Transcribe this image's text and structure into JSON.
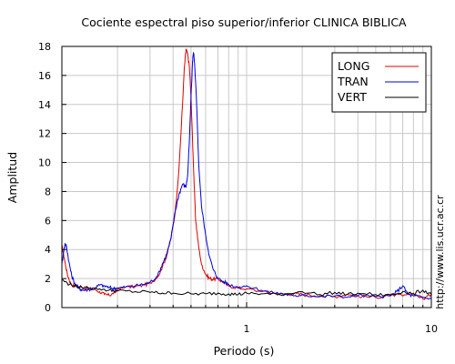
{
  "chart_data": {
    "type": "line",
    "title": "Cociente espectral piso superior/inferior  CLINICA BIBLICA",
    "xlabel": "Periodo (s)",
    "ylabel": "Amplitud",
    "side_text": "http://www.lis.ucr.ac.cr",
    "x_scale": "log",
    "xlim": [
      0.1,
      10
    ],
    "ylim": [
      0,
      18
    ],
    "x_tick_labels": [
      {
        "value": 1,
        "label": "1"
      },
      {
        "value": 10,
        "label": "10"
      }
    ],
    "y_ticks": [
      0,
      2,
      4,
      6,
      8,
      10,
      12,
      14,
      16,
      18
    ],
    "grid": true,
    "legend_position": "top-right",
    "series": [
      {
        "name": "LONG",
        "color": "#dd0000",
        "points": [
          [
            0.1,
            4.3
          ],
          [
            0.103,
            3.4
          ],
          [
            0.107,
            2.3
          ],
          [
            0.112,
            1.6
          ],
          [
            0.12,
            1.45
          ],
          [
            0.13,
            1.35
          ],
          [
            0.14,
            1.3
          ],
          [
            0.15,
            1.25
          ],
          [
            0.16,
            1.1
          ],
          [
            0.17,
            0.9
          ],
          [
            0.18,
            0.85
          ],
          [
            0.19,
            0.95
          ],
          [
            0.2,
            1.2
          ],
          [
            0.22,
            1.4
          ],
          [
            0.25,
            1.45
          ],
          [
            0.28,
            1.55
          ],
          [
            0.3,
            1.7
          ],
          [
            0.33,
            2.1
          ],
          [
            0.35,
            2.8
          ],
          [
            0.37,
            3.6
          ],
          [
            0.39,
            4.8
          ],
          [
            0.41,
            6.5
          ],
          [
            0.43,
            9.5
          ],
          [
            0.45,
            14.0
          ],
          [
            0.46,
            16.5
          ],
          [
            0.47,
            17.8
          ],
          [
            0.48,
            17.4
          ],
          [
            0.49,
            16.6
          ],
          [
            0.5,
            14.5
          ],
          [
            0.51,
            11.5
          ],
          [
            0.52,
            8.5
          ],
          [
            0.53,
            6.0
          ],
          [
            0.55,
            4.2
          ],
          [
            0.57,
            3.0
          ],
          [
            0.6,
            2.3
          ],
          [
            0.63,
            2.0
          ],
          [
            0.66,
            1.95
          ],
          [
            0.7,
            2.0
          ],
          [
            0.75,
            1.7
          ],
          [
            0.8,
            1.5
          ],
          [
            0.9,
            1.35
          ],
          [
            1.0,
            1.3
          ],
          [
            1.2,
            1.1
          ],
          [
            1.4,
            1.0
          ],
          [
            1.6,
            0.9
          ],
          [
            1.8,
            0.95
          ],
          [
            2.0,
            0.9
          ],
          [
            2.5,
            0.8
          ],
          [
            3.0,
            0.75
          ],
          [
            3.5,
            0.9
          ],
          [
            4.0,
            0.8
          ],
          [
            5.0,
            0.7
          ],
          [
            6.0,
            0.9
          ],
          [
            7.0,
            0.8
          ],
          [
            8.0,
            1.0
          ],
          [
            9.0,
            0.6
          ],
          [
            10.0,
            0.9
          ]
        ]
      },
      {
        "name": "TRAN",
        "color": "#0000dd",
        "points": [
          [
            0.1,
            3.0
          ],
          [
            0.102,
            3.8
          ],
          [
            0.104,
            4.4
          ],
          [
            0.106,
            4.2
          ],
          [
            0.109,
            3.2
          ],
          [
            0.113,
            2.2
          ],
          [
            0.118,
            1.6
          ],
          [
            0.125,
            1.3
          ],
          [
            0.13,
            1.2
          ],
          [
            0.14,
            1.25
          ],
          [
            0.15,
            1.35
          ],
          [
            0.16,
            1.55
          ],
          [
            0.17,
            1.5
          ],
          [
            0.18,
            1.4
          ],
          [
            0.19,
            1.3
          ],
          [
            0.2,
            1.35
          ],
          [
            0.22,
            1.4
          ],
          [
            0.25,
            1.5
          ],
          [
            0.28,
            1.6
          ],
          [
            0.3,
            1.75
          ],
          [
            0.33,
            2.2
          ],
          [
            0.35,
            3.0
          ],
          [
            0.37,
            3.7
          ],
          [
            0.39,
            4.8
          ],
          [
            0.41,
            6.6
          ],
          [
            0.43,
            7.8
          ],
          [
            0.45,
            8.5
          ],
          [
            0.47,
            8.3
          ],
          [
            0.48,
            9.2
          ],
          [
            0.49,
            11.5
          ],
          [
            0.5,
            14.5
          ],
          [
            0.51,
            17.0
          ],
          [
            0.515,
            17.6
          ],
          [
            0.52,
            17.2
          ],
          [
            0.53,
            15.5
          ],
          [
            0.54,
            13.0
          ],
          [
            0.55,
            10.0
          ],
          [
            0.57,
            7.0
          ],
          [
            0.6,
            5.0
          ],
          [
            0.63,
            3.5
          ],
          [
            0.66,
            2.6
          ],
          [
            0.7,
            2.0
          ],
          [
            0.75,
            1.8
          ],
          [
            0.8,
            1.6
          ],
          [
            0.9,
            1.4
          ],
          [
            1.0,
            1.5
          ],
          [
            1.2,
            1.2
          ],
          [
            1.4,
            1.0
          ],
          [
            1.6,
            0.95
          ],
          [
            1.8,
            0.8
          ],
          [
            2.0,
            0.9
          ],
          [
            2.5,
            0.75
          ],
          [
            3.0,
            0.8
          ],
          [
            3.5,
            0.7
          ],
          [
            4.0,
            0.85
          ],
          [
            5.0,
            0.75
          ],
          [
            6.0,
            0.8
          ],
          [
            6.5,
            1.1
          ],
          [
            7.0,
            1.5
          ],
          [
            7.5,
            0.9
          ],
          [
            8.0,
            0.8
          ],
          [
            9.0,
            0.7
          ],
          [
            10.0,
            0.6
          ]
        ]
      },
      {
        "name": "VERT",
        "color": "#000000",
        "points": [
          [
            0.1,
            1.9
          ],
          [
            0.11,
            1.6
          ],
          [
            0.12,
            1.45
          ],
          [
            0.14,
            1.35
          ],
          [
            0.16,
            1.3
          ],
          [
            0.18,
            1.2
          ],
          [
            0.2,
            1.15
          ],
          [
            0.25,
            1.1
          ],
          [
            0.3,
            1.05
          ],
          [
            0.35,
            1.0
          ],
          [
            0.4,
            1.0
          ],
          [
            0.5,
            0.95
          ],
          [
            0.6,
            0.95
          ],
          [
            0.7,
            1.0
          ],
          [
            0.8,
            0.95
          ],
          [
            0.9,
            0.9
          ],
          [
            1.0,
            1.0
          ],
          [
            1.2,
            0.95
          ],
          [
            1.5,
            0.9
          ],
          [
            2.0,
            1.1
          ],
          [
            2.5,
            0.9
          ],
          [
            3.0,
            1.05
          ],
          [
            3.5,
            0.9
          ],
          [
            4.0,
            1.0
          ],
          [
            5.0,
            0.9
          ],
          [
            6.0,
            0.85
          ],
          [
            7.0,
            1.1
          ],
          [
            8.0,
            0.95
          ],
          [
            9.0,
            1.2
          ],
          [
            10.0,
            0.9
          ]
        ]
      }
    ]
  }
}
